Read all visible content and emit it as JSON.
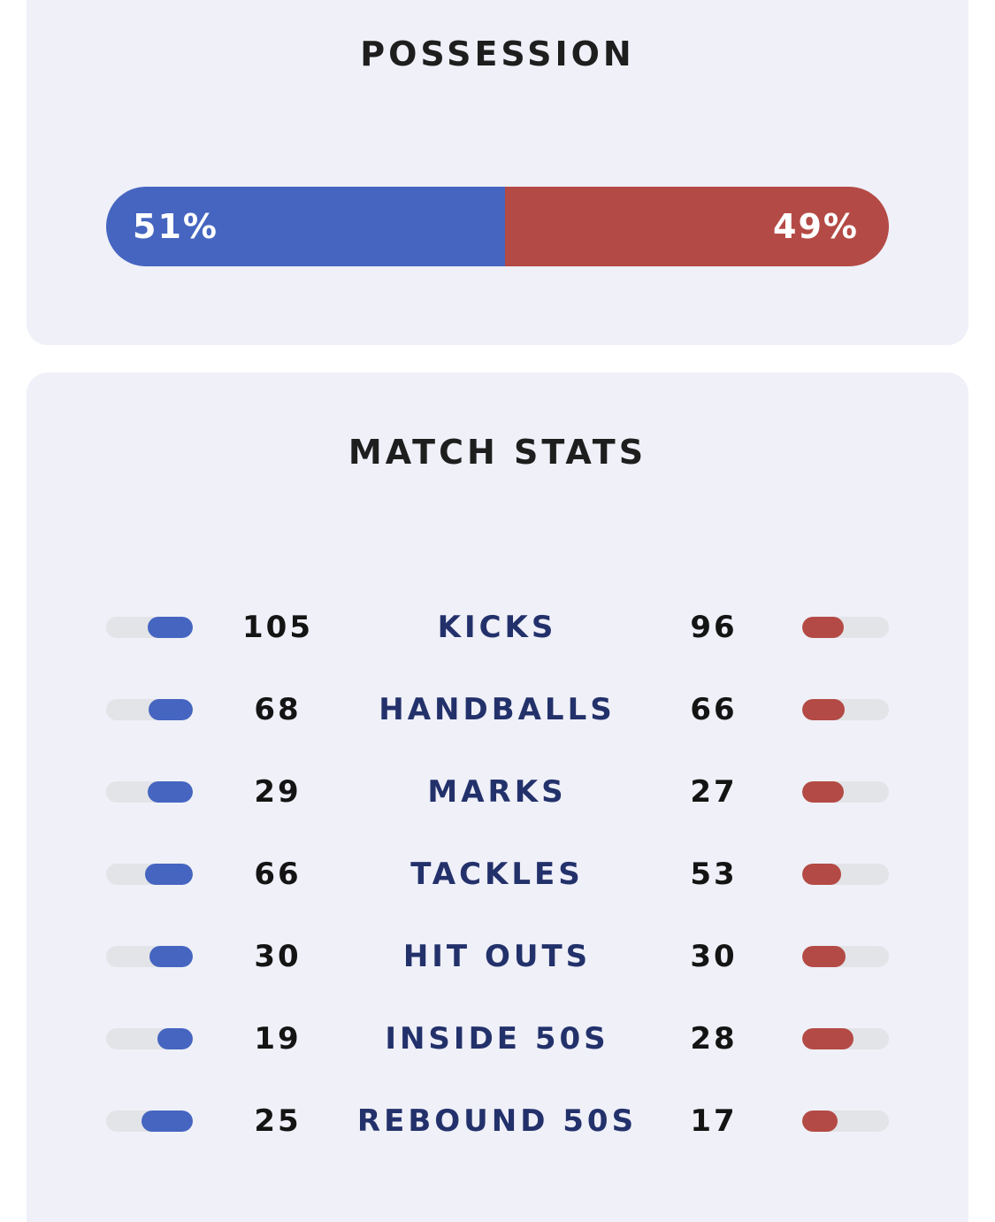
{
  "possession": {
    "title": "POSSESSION",
    "home_pct": 51,
    "away_pct": 49,
    "home_label": "51%",
    "away_label": "49%",
    "home_color": "#4565c0",
    "away_color": "#b44a45"
  },
  "match_stats": {
    "title": "MATCH STATS",
    "rows": [
      {
        "label": "KICKS",
        "home": "105",
        "away": "96"
      },
      {
        "label": "HANDBALLS",
        "home": "68",
        "away": "66"
      },
      {
        "label": "MARKS",
        "home": "29",
        "away": "27"
      },
      {
        "label": "TACKLES",
        "home": "66",
        "away": "53"
      },
      {
        "label": "HIT OUTS",
        "home": "30",
        "away": "30"
      },
      {
        "label": "INSIDE 50S",
        "home": "19",
        "away": "28"
      },
      {
        "label": "REBOUND 50S",
        "home": "25",
        "away": "17"
      }
    ]
  }
}
